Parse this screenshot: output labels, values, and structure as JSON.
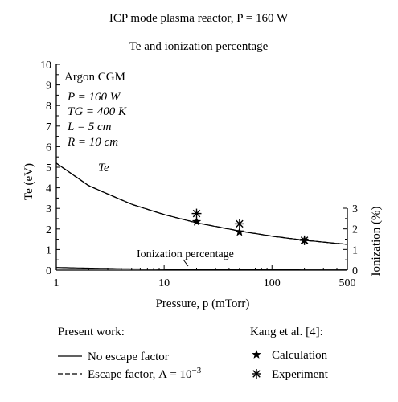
{
  "chart_data": {
    "type": "line",
    "title": "ICP mode plasma reactor, P = 160 W",
    "subtitle": "Te and ionization percentage",
    "xlabel": "Pressure, p (mTorr)",
    "ylabel_left": "Te (eV)",
    "ylabel_right": "Ionization (%)",
    "xscale": "log",
    "xlim": [
      1,
      500
    ],
    "ylim_left": [
      0,
      10
    ],
    "ylim_right": [
      0,
      3
    ],
    "x_ticks": [
      "1",
      "10",
      "100",
      "500"
    ],
    "y_ticks_left": [
      "0",
      "1",
      "2",
      "3",
      "4",
      "5",
      "6",
      "7",
      "8",
      "9",
      "10"
    ],
    "y_ticks_right": [
      "0",
      "1",
      "2",
      "3"
    ],
    "grid": false,
    "info": [
      "Argon CGM",
      "P = 160 W",
      "TG = 400 K",
      "L = 5 cm",
      "R = 10 cm"
    ],
    "annotations": {
      "te_curve": "Te",
      "ionization_curve": "Ionization percentage"
    },
    "series": [
      {
        "name": "No escape factor",
        "axis": "left",
        "style": "solid",
        "x": [
          1,
          2,
          5,
          10,
          20,
          50,
          100,
          200,
          500
        ],
        "y": [
          5.2,
          4.1,
          3.2,
          2.7,
          2.3,
          1.9,
          1.65,
          1.45,
          1.25
        ]
      },
      {
        "name": "Escape factor, Λ = 10^-3",
        "axis": "left",
        "style": "dashed",
        "x": [
          1,
          2,
          5,
          10,
          20,
          50,
          100,
          200,
          500
        ],
        "y": [
          5.2,
          4.1,
          3.2,
          2.7,
          2.3,
          1.9,
          1.65,
          1.45,
          1.25
        ]
      },
      {
        "name": "Ionization percentage",
        "axis": "right",
        "style": "solid",
        "x": [
          1,
          2,
          5,
          10,
          20,
          50,
          100,
          200,
          500
        ],
        "y": [
          0.13,
          0.095,
          0.06,
          0.045,
          0.033,
          0.022,
          0.017,
          0.013,
          0.01
        ]
      },
      {
        "name": "Calculation",
        "axis": "left",
        "marker": "star",
        "x": [
          20,
          50,
          200
        ],
        "y": [
          2.35,
          1.85,
          1.45
        ]
      },
      {
        "name": "Experiment",
        "axis": "left",
        "marker": "asterisk",
        "x": [
          20,
          50,
          200
        ],
        "y": [
          2.75,
          2.25,
          1.45
        ]
      }
    ],
    "legend": {
      "present_title": "Present work:",
      "kang_title": "Kang et al. [4]:",
      "no_escape": "No escape factor",
      "escape_prefix": "Escape factor, Λ = 10",
      "escape_exp": "−3",
      "calculation": "Calculation",
      "experiment": "Experiment"
    }
  }
}
